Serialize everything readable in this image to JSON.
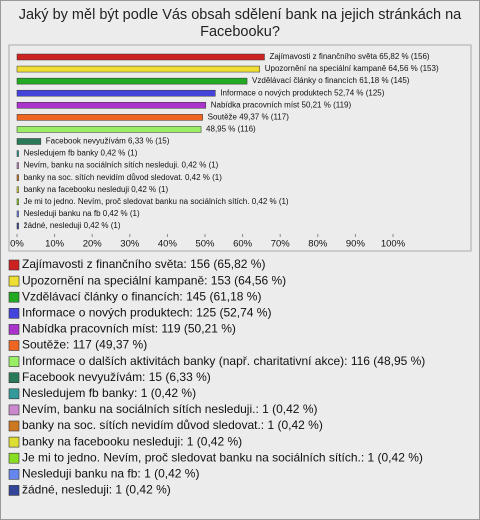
{
  "chart_data": {
    "type": "bar",
    "orientation": "horizontal",
    "title": "Jaký by měl být podle Vás obsah sdělení bank na jejich stránkách na Facebooku?",
    "categories": [
      "Zajímavosti z finančního světa",
      "Upozornění na speciální kampaně",
      "Vzdělávací články o financích",
      "Informace o nových produktech",
      "Nabídka pracovních míst",
      "Soutěže",
      "Informace o dalších aktivitách banky (např. charitativní akce)",
      "Facebook nevyužívám",
      "Nesledujem fb banky",
      "Nevím, banku na sociálních sítích nesleduji.",
      "banky na soc. sítích nevidím důvod sledovat.",
      "banky na facebooku nesleduji",
      "Je mi to jedno. Nevím, proč sledovat banku na sociálních sítích.",
      "Nesleduji banku na fb",
      "žádné, nesleduji"
    ],
    "values": [
      65.82,
      64.56,
      61.18,
      52.74,
      50.21,
      49.37,
      48.95,
      6.33,
      0.42,
      0.42,
      0.42,
      0.42,
      0.42,
      0.42,
      0.42
    ],
    "value_labels": [
      "Zajímavosti z finančního světa 65,82 % (156)",
      "Upozornění na speciální kampaně 64,56 % (153)",
      "Vzdělávací články o financích 61,18 % (145)",
      "Informace o nových produktech 52,74 % (125)",
      "Nabídka pracovních míst 50,21 % (119)",
      "Soutěže 49,37 % (117)",
      "48,95 % (116)",
      "Facebook nevyužívám 6,33 % (15)",
      "Nesledujem fb banky 0,42 % (1)",
      "Nevím, banku na sociálních sítích nesleduji. 0,42 % (1)",
      "banky na soc. sítích nevidím důvod sledovat. 0,42 % (1)",
      "banky na facebooku nesleduji 0,42 % (1)",
      "Je mi to jedno. Nevím, proč sledovat banku na sociálních sítích. 0,42 % (1)",
      "Nesleduji banku na fb 0,42 % (1)",
      "žádné, nesleduji 0,42 % (1)"
    ],
    "legend_labels": [
      "Zajímavosti z finančního světa: 156 (65,82 %)",
      "Upozornění na speciální kampaně: 153 (64,56 %)",
      "Vzdělávací články o financích: 145 (61,18 %)",
      "Informace o nových produktech: 125 (52,74 %)",
      "Nabídka pracovních míst: 119 (50,21 %)",
      "Soutěže: 117 (49,37 %)",
      "Informace o dalších aktivitách banky (např. charitativní akce): 116 (48,95 %)",
      "Facebook nevyužívám: 15 (6,33 %)",
      "Nesledujem fb banky: 1 (0,42 %)",
      "Nevím, banku na sociálních sítích nesleduji.: 1 (0,42 %)",
      "banky na soc. sítích nevidím důvod sledovat.: 1 (0,42 %)",
      "banky na facebooku nesleduji: 1 (0,42 %)",
      "Je mi to jedno. Nevím, proč sledovat banku na sociálních sítích.: 1 (0,42 %)",
      "Nesleduji banku na fb: 1 (0,42 %)",
      "žádné, nesleduji: 1 (0,42 %)"
    ],
    "colors": [
      "#cc2222",
      "#eedd33",
      "#22aa22",
      "#4444dd",
      "#aa33cc",
      "#ee6622",
      "#99ee66",
      "#2a7a5a",
      "#339999",
      "#cc88cc",
      "#cc7722",
      "#dddd33",
      "#88dd22",
      "#6688ee",
      "#334499"
    ],
    "xlim": [
      0,
      100
    ],
    "xticks": [
      {
        "value": 0,
        "label": "0%"
      },
      {
        "value": 10,
        "label": "10%"
      },
      {
        "value": 20,
        "label": "20%"
      },
      {
        "value": 30,
        "label": "30%"
      },
      {
        "value": 40,
        "label": "40%"
      },
      {
        "value": 50,
        "label": "50%"
      },
      {
        "value": 60,
        "label": "60%"
      },
      {
        "value": 70,
        "label": "70%"
      },
      {
        "value": 80,
        "label": "80%"
      },
      {
        "value": 90,
        "label": "90%"
      },
      {
        "value": 100,
        "label": "100%"
      }
    ],
    "grid": false
  }
}
